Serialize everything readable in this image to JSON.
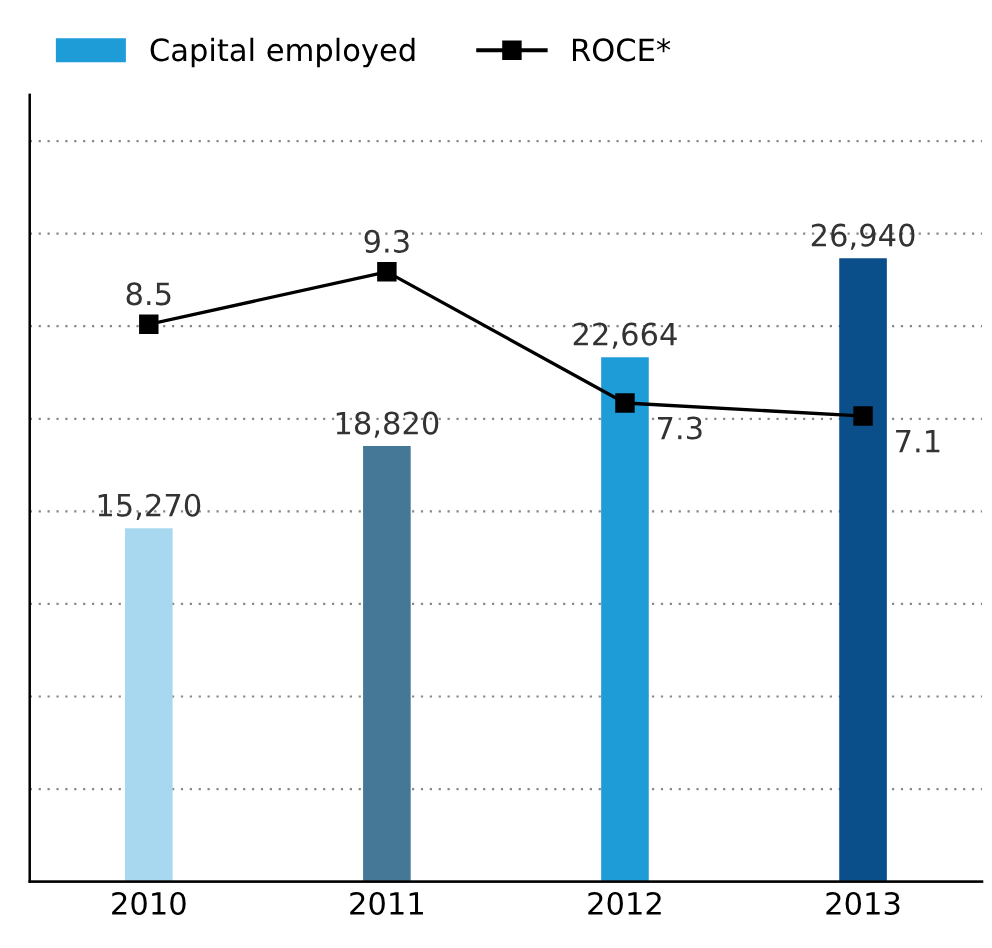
{
  "chart_data": {
    "type": "bar",
    "categories": [
      "2010",
      "2011",
      "2012",
      "2013"
    ],
    "series": [
      {
        "name": "Capital employed",
        "colors": [
          "#a8d8f0",
          "#457896",
          "#1e9cd8",
          "#0a4f8a"
        ],
        "color": "#1e9cd8",
        "values": [
          15270,
          18820,
          22664,
          26940
        ],
        "value_labels": [
          "15,270",
          "18,820",
          "22,664",
          "26,940"
        ]
      },
      {
        "name": "ROCE*",
        "type": "line",
        "axis": "y2",
        "color": "#000000",
        "marker": "square",
        "values": [
          8.5,
          9.3,
          7.3,
          7.1
        ],
        "value_labels": [
          "8.5",
          "9.3",
          "7.3",
          "7.1"
        ]
      }
    ],
    "ylim": [
      0,
      34000
    ],
    "yticks": [
      {
        "value": 4000,
        "label": null
      },
      {
        "value": 8000,
        "label": null
      },
      {
        "value": 12000,
        "label": null
      },
      {
        "value": 16000,
        "label": null
      },
      {
        "value": 20000,
        "label": null
      },
      {
        "value": 24000,
        "label": null
      },
      {
        "value": 28000,
        "label": null
      },
      {
        "value": 32000,
        "label": null
      }
    ],
    "y2lim": [
      0,
      12
    ],
    "grid": "y",
    "legend": "top left",
    "tick_labels": "x"
  }
}
